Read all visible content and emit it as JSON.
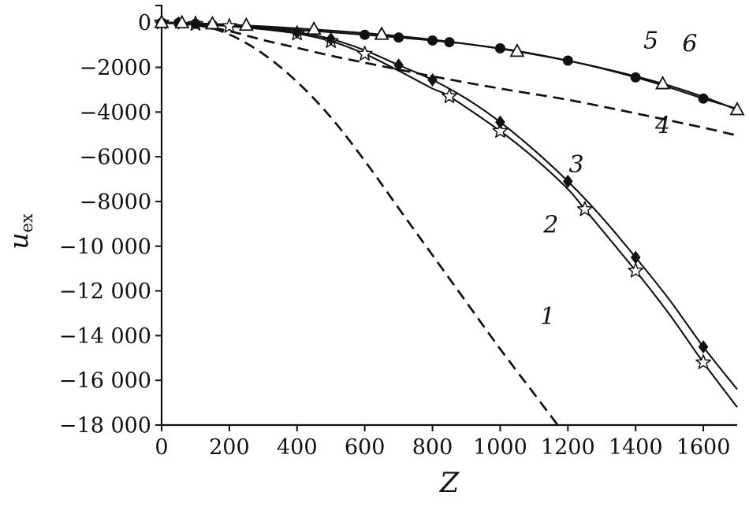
{
  "figure": {
    "bg": "#ffffff",
    "ink": "#111111"
  },
  "axis": {
    "xlabel": "Z",
    "ylabel_base": "u",
    "ylabel_sub": "ex"
  },
  "chart_data": {
    "type": "line",
    "title": "",
    "xlabel": "Z",
    "ylabel": "u_ex",
    "xlim": [
      0,
      1700
    ],
    "ylim": [
      -18000,
      800
    ],
    "grid": false,
    "legend_position": "inline-curve-numbers",
    "x_ticks": [
      {
        "v": 0,
        "label": "0"
      },
      {
        "v": 200,
        "label": "200"
      },
      {
        "v": 400,
        "label": "400"
      },
      {
        "v": 600,
        "label": "600"
      },
      {
        "v": 800,
        "label": "800"
      },
      {
        "v": 1000,
        "label": "1000"
      },
      {
        "v": 1200,
        "label": "1200"
      },
      {
        "v": 1400,
        "label": "1400"
      },
      {
        "v": 1600,
        "label": "1600"
      }
    ],
    "y_ticks": [
      {
        "v": 0,
        "label": "0"
      },
      {
        "v": -2000,
        "label": "−2000"
      },
      {
        "v": -4000,
        "label": "−4000"
      },
      {
        "v": -6000,
        "label": "−6000"
      },
      {
        "v": -8000,
        "label": "−8000"
      },
      {
        "v": -10000,
        "label": "−10 000"
      },
      {
        "v": -12000,
        "label": "−12 000"
      },
      {
        "v": -14000,
        "label": "−14 000"
      },
      {
        "v": -16000,
        "label": "−16 000"
      },
      {
        "v": -18000,
        "label": "−18 000"
      }
    ],
    "series": [
      {
        "name": "curve-1",
        "label": "1",
        "line": "dashed",
        "marker": "none",
        "label_at": [
          1140,
          -13500
        ],
        "points": [
          [
            0,
            0
          ],
          [
            100,
            -70
          ],
          [
            200,
            -530
          ],
          [
            300,
            -1400
          ],
          [
            400,
            -2650
          ],
          [
            500,
            -4240
          ],
          [
            600,
            -6180
          ],
          [
            700,
            -8300
          ],
          [
            800,
            -10400
          ],
          [
            900,
            -12500
          ],
          [
            1000,
            -14600
          ],
          [
            1100,
            -16600
          ],
          [
            1170,
            -18000
          ]
        ]
      },
      {
        "name": "curve-2",
        "label": "2",
        "line": "solid",
        "marker": "star-open",
        "label_at": [
          1150,
          -9400
        ],
        "points": [
          [
            0,
            0
          ],
          [
            50,
            -15
          ],
          [
            100,
            -60
          ],
          [
            200,
            -160
          ],
          [
            300,
            -300
          ],
          [
            400,
            -490
          ],
          [
            500,
            -830
          ],
          [
            600,
            -1400
          ],
          [
            700,
            -2150
          ],
          [
            800,
            -2950
          ],
          [
            850,
            -3300
          ],
          [
            1000,
            -4850
          ],
          [
            1100,
            -6050
          ],
          [
            1200,
            -7450
          ],
          [
            1250,
            -8350
          ],
          [
            1400,
            -11100
          ],
          [
            1500,
            -13050
          ],
          [
            1600,
            -15200
          ],
          [
            1700,
            -17200
          ]
        ],
        "marker_points": [
          [
            0,
            0
          ],
          [
            100,
            -60
          ],
          [
            200,
            -160
          ],
          [
            400,
            -490
          ],
          [
            500,
            -830
          ],
          [
            600,
            -1400
          ],
          [
            850,
            -3300
          ],
          [
            1000,
            -4850
          ],
          [
            1250,
            -8350
          ],
          [
            1400,
            -11100
          ],
          [
            1600,
            -15200
          ]
        ]
      },
      {
        "name": "curve-3",
        "label": "3",
        "line": "solid",
        "marker": "diamond-filled",
        "label_at": [
          1225,
          -6700
        ],
        "points": [
          [
            0,
            0
          ],
          [
            100,
            -50
          ],
          [
            200,
            -130
          ],
          [
            300,
            -260
          ],
          [
            400,
            -430
          ],
          [
            500,
            -730
          ],
          [
            600,
            -1240
          ],
          [
            700,
            -1900
          ],
          [
            800,
            -2560
          ],
          [
            900,
            -3400
          ],
          [
            1000,
            -4450
          ],
          [
            1100,
            -5700
          ],
          [
            1200,
            -7100
          ],
          [
            1300,
            -8700
          ],
          [
            1400,
            -10500
          ],
          [
            1500,
            -12400
          ],
          [
            1600,
            -14500
          ],
          [
            1700,
            -16400
          ]
        ],
        "marker_points": [
          [
            50,
            -20
          ],
          [
            400,
            -430
          ],
          [
            500,
            -730
          ],
          [
            700,
            -1900
          ],
          [
            800,
            -2560
          ],
          [
            1000,
            -4450
          ],
          [
            1200,
            -7100
          ],
          [
            1400,
            -10500
          ],
          [
            1600,
            -14500
          ]
        ]
      },
      {
        "name": "curve-4",
        "label": "4",
        "line": "dashed",
        "marker": "none",
        "label_at": [
          1480,
          -4950
        ],
        "points": [
          [
            0,
            0
          ],
          [
            100,
            -120
          ],
          [
            200,
            -380
          ],
          [
            300,
            -780
          ],
          [
            400,
            -1130
          ],
          [
            500,
            -1480
          ],
          [
            600,
            -1790
          ],
          [
            800,
            -2400
          ],
          [
            1000,
            -2950
          ],
          [
            1200,
            -3450
          ],
          [
            1400,
            -4060
          ],
          [
            1600,
            -4700
          ],
          [
            1700,
            -5050
          ]
        ]
      },
      {
        "name": "curve-5",
        "label": "5",
        "line": "solid",
        "marker": "circle-filled",
        "label_at": [
          1445,
          -1150
        ],
        "points": [
          [
            0,
            0
          ],
          [
            50,
            -15
          ],
          [
            100,
            -55
          ],
          [
            200,
            -140
          ],
          [
            300,
            -230
          ],
          [
            400,
            -330
          ],
          [
            500,
            -430
          ],
          [
            600,
            -545
          ],
          [
            700,
            -665
          ],
          [
            800,
            -800
          ],
          [
            850,
            -875
          ],
          [
            900,
            -955
          ],
          [
            1000,
            -1150
          ],
          [
            1100,
            -1400
          ],
          [
            1200,
            -1700
          ],
          [
            1300,
            -2050
          ],
          [
            1400,
            -2450
          ],
          [
            1500,
            -2900
          ],
          [
            1600,
            -3400
          ],
          [
            1700,
            -3850
          ]
        ],
        "marker_points": [
          [
            0,
            0
          ],
          [
            50,
            -15
          ],
          [
            100,
            -55
          ],
          [
            150,
            -95
          ],
          [
            600,
            -545
          ],
          [
            700,
            -665
          ],
          [
            800,
            -800
          ],
          [
            850,
            -875
          ],
          [
            1000,
            -1150
          ],
          [
            1200,
            -1700
          ],
          [
            1400,
            -2450
          ],
          [
            1600,
            -3400
          ]
        ]
      },
      {
        "name": "curve-6",
        "label": "6",
        "line": "solid",
        "marker": "triangle-open",
        "label_at": [
          1560,
          -1300
        ],
        "points": [
          [
            0,
            0
          ],
          [
            100,
            -30
          ],
          [
            200,
            -90
          ],
          [
            300,
            -165
          ],
          [
            400,
            -255
          ],
          [
            500,
            -355
          ],
          [
            600,
            -470
          ],
          [
            700,
            -600
          ],
          [
            800,
            -760
          ],
          [
            900,
            -950
          ],
          [
            1000,
            -1170
          ],
          [
            1100,
            -1420
          ],
          [
            1200,
            -1705
          ],
          [
            1300,
            -2030
          ],
          [
            1400,
            -2400
          ],
          [
            1500,
            -2820
          ],
          [
            1600,
            -3320
          ],
          [
            1700,
            -3900
          ]
        ],
        "marker_points": [
          [
            0,
            0
          ],
          [
            60,
            -15
          ],
          [
            150,
            -60
          ],
          [
            250,
            -125
          ],
          [
            450,
            -300
          ],
          [
            650,
            -530
          ],
          [
            1050,
            -1290
          ],
          [
            1480,
            -2740
          ],
          [
            1700,
            -3900
          ]
        ]
      }
    ]
  }
}
